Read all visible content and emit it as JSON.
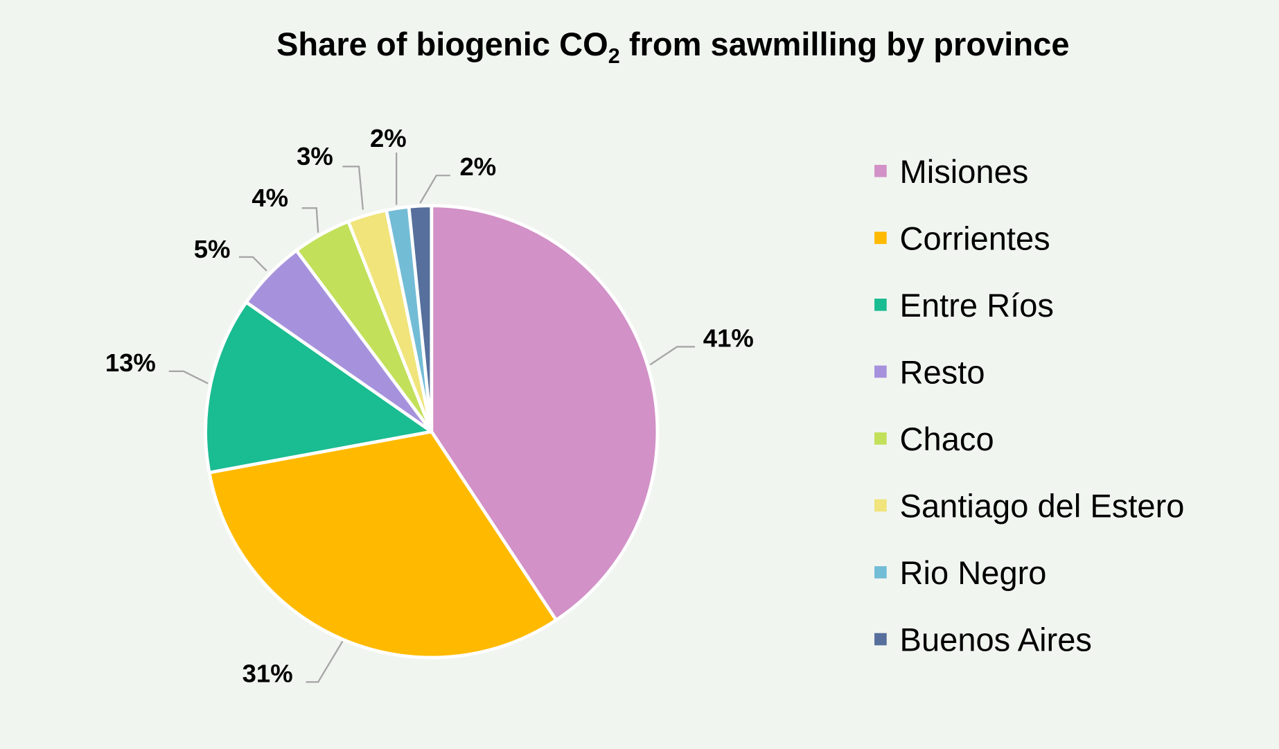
{
  "chart_data": {
    "type": "pie",
    "title": "Share of biogenic CO",
    "title_subscript": "2",
    "title_suffix": " from sawmilling by province",
    "start_angle": "top, clockwise",
    "legend_position": "right",
    "categories": [
      "Misiones",
      "Corrientes",
      "Entre Ríos",
      "Resto",
      "Chaco",
      "Santiago del Estero",
      "Rio Negro",
      "Buenos Aires"
    ],
    "values": [
      40.7,
      31.4,
      12.6,
      5.1,
      4.2,
      2.8,
      1.6,
      1.6
    ],
    "data_labels": [
      "41%",
      "31%",
      "13%",
      "5%",
      "4%",
      "3%",
      "2%",
      "2%"
    ],
    "colors": [
      "#D291C7",
      "#FFBA00",
      "#1ABC91",
      "#A692DC",
      "#C2E05A",
      "#F0E47A",
      "#73BCD6",
      "#566F9C"
    ]
  },
  "background": "#F1F5F0"
}
